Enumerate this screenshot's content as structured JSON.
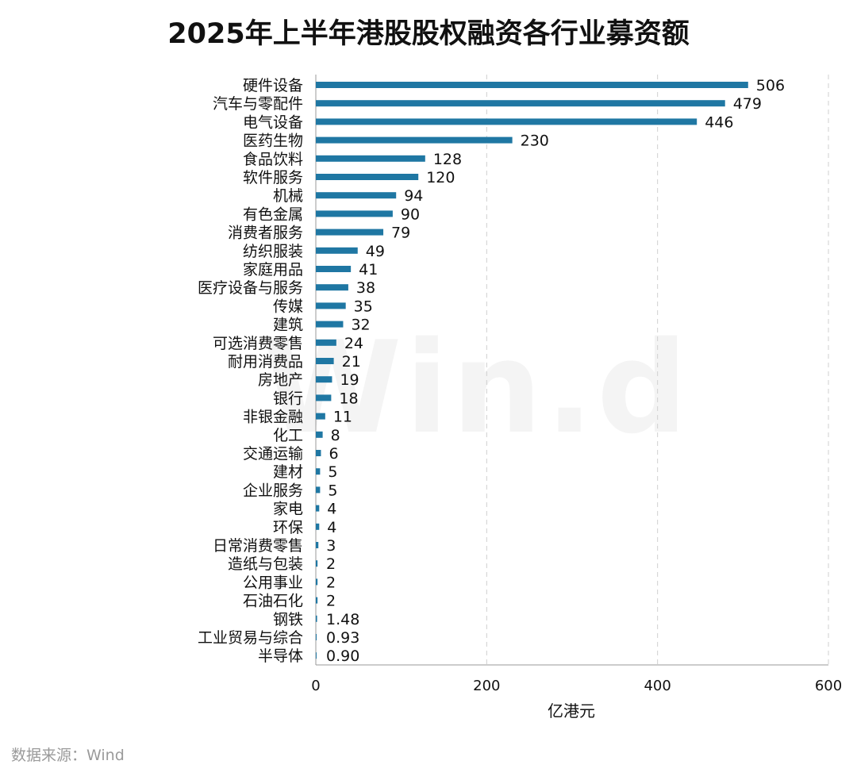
{
  "source_note": "数据来源：Wind",
  "watermark": "Win.d",
  "chart_data": {
    "type": "bar",
    "orientation": "horizontal",
    "title": "2025年上半年港股股权融资各行业募资额",
    "xlabel": "亿港元",
    "xlim": [
      0,
      600
    ],
    "xticks": [
      0,
      200,
      400,
      600
    ],
    "grid": "vertical-dashed",
    "bar_color": "#1f77a3",
    "categories": [
      "硬件设备",
      "汽车与零配件",
      "电气设备",
      "医药生物",
      "食品饮料",
      "软件服务",
      "机械",
      "有色金属",
      "消费者服务",
      "纺织服装",
      "家庭用品",
      "医疗设备与服务",
      "传媒",
      "建筑",
      "可选消费零售",
      "耐用消费品",
      "房地产",
      "银行",
      "非银金融",
      "化工",
      "交通运输",
      "建材",
      "企业服务",
      "家电",
      "环保",
      "日常消费零售",
      "造纸与包装",
      "公用事业",
      "石油石化",
      "钢铁",
      "工业贸易与综合",
      "半导体"
    ],
    "values": [
      506,
      479,
      446,
      230,
      128,
      120,
      94,
      90,
      79,
      49,
      41,
      38,
      35,
      32,
      24,
      21,
      19,
      18,
      11,
      8,
      6,
      5,
      5,
      4,
      4,
      3,
      2,
      2,
      2,
      1.48,
      0.93,
      0.9
    ],
    "value_labels": [
      "506",
      "479",
      "446",
      "230",
      "128",
      "120",
      "94",
      "90",
      "79",
      "49",
      "41",
      "38",
      "35",
      "32",
      "24",
      "21",
      "19",
      "18",
      "11",
      "8",
      "6",
      "5",
      "5",
      "4",
      "4",
      "3",
      "2",
      "2",
      "2",
      "1.48",
      "0.93",
      "0.90"
    ]
  }
}
